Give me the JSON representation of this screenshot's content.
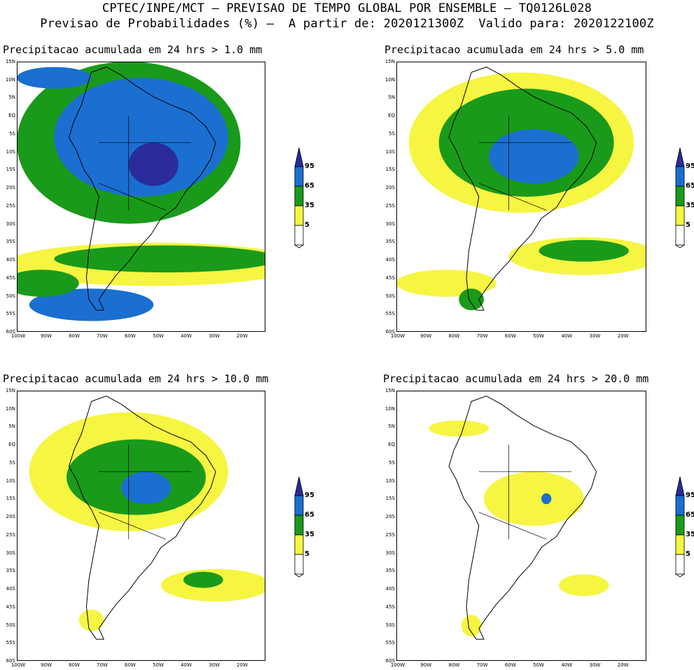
{
  "header": {
    "line1": "CPTEC/INPE/MCT – PREVISAO DE TEMPO GLOBAL POR ENSEMBLE – TQ0126L028",
    "line2": "Previsao de Probabilidades (%) –  A partir de: 2020121300Z  Valido para: 2020122100Z"
  },
  "lat_labels": [
    "15N",
    "10N",
    "5N",
    "EQ",
    "5S",
    "10S",
    "15S",
    "20S",
    "25S",
    "30S",
    "35S",
    "40S",
    "45S",
    "50S",
    "55S",
    "60S"
  ],
  "lon_labels": [
    "100W",
    "90W",
    "80W",
    "70W",
    "60W",
    "50W",
    "40W",
    "30W",
    "20W"
  ],
  "colorbar": {
    "labels": [
      "95",
      "65",
      "35",
      "5"
    ],
    "colors": [
      "#2b2b9c",
      "#1a6fd0",
      "#1a9a1a",
      "#f5f542",
      "#ffffff"
    ]
  },
  "panels": [
    {
      "title": "Precipitacao acumulada em 24 hrs > 1.0 mm"
    },
    {
      "title": "Precipitacao acumulada em 24 hrs > 5.0 mm"
    },
    {
      "title": "Precipitacao acumulada em 24 hrs > 10.0 mm"
    },
    {
      "title": "Precipitacao acumulada em 24 hrs > 20.0 mm"
    }
  ]
}
